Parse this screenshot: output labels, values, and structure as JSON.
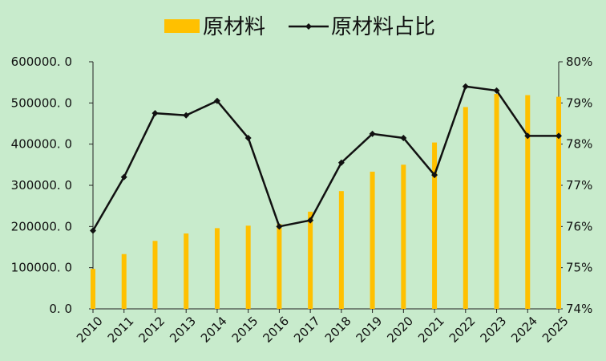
{
  "chart_data": {
    "type": "bar+line",
    "categories": [
      "2010",
      "2011",
      "2012",
      "2013",
      "2014",
      "2015",
      "2016",
      "2017",
      "2018",
      "2019",
      "2020",
      "2021",
      "2022",
      "2023",
      "2024",
      "2025"
    ],
    "series": [
      {
        "name": "原材料",
        "type": "bar",
        "axis": "left",
        "color": "#ffc000",
        "values": [
          97000,
          133000,
          165000,
          183000,
          196000,
          202000,
          206000,
          236000,
          286000,
          333000,
          350000,
          404000,
          490000,
          522000,
          519000,
          515000
        ]
      },
      {
        "name": "原材料占比",
        "type": "line",
        "axis": "right",
        "color": "#111111",
        "marker": "diamond",
        "values": [
          75.9,
          77.2,
          78.75,
          78.7,
          79.05,
          78.15,
          76.0,
          76.15,
          77.55,
          78.25,
          78.15,
          77.25,
          79.4,
          79.3,
          78.2,
          78.2
        ]
      }
    ],
    "y_left": {
      "range": [
        0,
        600000
      ],
      "ticks": [
        "0. 0",
        "100000. 0",
        "200000. 0",
        "300000. 0",
        "400000. 0",
        "500000. 0",
        "600000. 0"
      ]
    },
    "y_right": {
      "range": [
        74,
        80
      ],
      "ticks": [
        "74%",
        "75%",
        "76%",
        "77%",
        "78%",
        "79%",
        "80%"
      ]
    },
    "legend_position": "top-center",
    "grid": false,
    "background": "#c8ebcc"
  }
}
